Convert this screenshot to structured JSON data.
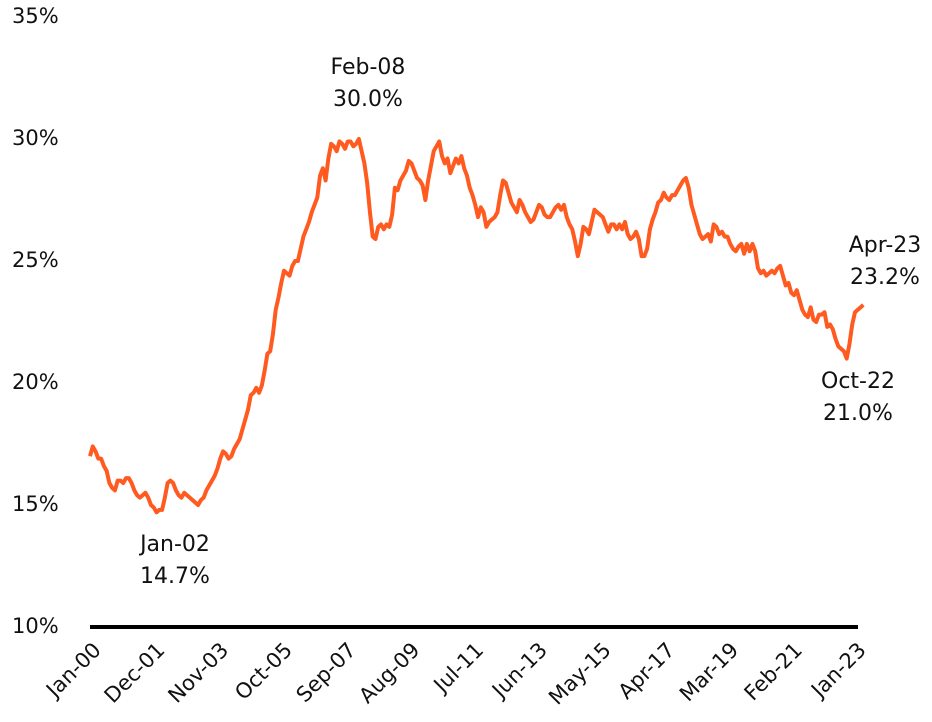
{
  "chart_data": {
    "type": "line",
    "categories": [
      "Jan-00",
      null,
      null,
      null,
      null,
      null,
      null,
      null,
      null,
      null,
      null,
      null,
      null,
      null,
      null,
      null,
      null,
      null,
      null,
      null,
      null,
      null,
      null,
      "Dec-01",
      null,
      null,
      null,
      null,
      null,
      null,
      null,
      null,
      null,
      null,
      null,
      null,
      null,
      null,
      null,
      null,
      null,
      null,
      null,
      null,
      null,
      null,
      "Nov-03",
      null,
      null,
      null,
      null,
      null,
      null,
      null,
      null,
      null,
      null,
      null,
      null,
      null,
      null,
      null,
      null,
      null,
      null,
      null,
      null,
      null,
      null,
      "Oct-05",
      null,
      null,
      null,
      null,
      null,
      null,
      null,
      null,
      null,
      null,
      null,
      null,
      null,
      null,
      null,
      null,
      null,
      null,
      null,
      null,
      null,
      null,
      "Sep-07",
      null,
      null,
      null,
      null,
      null,
      null,
      null,
      null,
      null,
      null,
      null,
      null,
      null,
      null,
      null,
      null,
      null,
      null,
      null,
      null,
      null,
      null,
      "Aug-09",
      null,
      null,
      null,
      null,
      null,
      null,
      null,
      null,
      null,
      null,
      null,
      null,
      null,
      null,
      null,
      null,
      null,
      null,
      null,
      null,
      null,
      null,
      "Jul-11",
      null,
      null,
      null,
      null,
      null,
      null,
      null,
      null,
      null,
      null,
      null,
      null,
      null,
      null,
      null,
      null,
      null,
      null,
      null,
      null,
      null,
      null,
      "Jun-13",
      null,
      null,
      null,
      null,
      null,
      null,
      null,
      null,
      null,
      null,
      null,
      null,
      null,
      null,
      null,
      null,
      null,
      null,
      null,
      null,
      null,
      null,
      "May-15",
      null,
      null,
      null,
      null,
      null,
      null,
      null,
      null,
      null,
      null,
      null,
      null,
      null,
      null,
      null,
      null,
      null,
      null,
      null,
      null,
      null,
      null,
      "Apr-17",
      null,
      null,
      null,
      null,
      null,
      null,
      null,
      null,
      null,
      null,
      null,
      null,
      null,
      null,
      null,
      null,
      null,
      null,
      null,
      null,
      null,
      null,
      "Mar-19",
      null,
      null,
      null,
      null,
      null,
      null,
      null,
      null,
      null,
      null,
      null,
      null,
      null,
      null,
      null,
      null,
      null,
      null,
      null,
      null,
      null,
      null,
      "Feb-21",
      null,
      null,
      null,
      null,
      null,
      null,
      null,
      null,
      null,
      null,
      null,
      null,
      null,
      null,
      null,
      null,
      null,
      null,
      null,
      null,
      null,
      null,
      "Jan-23",
      null,
      null,
      null
    ],
    "series": [
      {
        "color": "#ff5a1f",
        "values": [
          17.0,
          17.4,
          17.2,
          16.9,
          16.9,
          16.6,
          16.4,
          15.9,
          15.7,
          15.6,
          16.0,
          16.0,
          15.9,
          16.1,
          16.1,
          15.9,
          15.6,
          15.4,
          15.3,
          15.4,
          15.5,
          15.3,
          15.0,
          14.9,
          14.7,
          14.8,
          14.8,
          15.3,
          15.9,
          16.0,
          15.9,
          15.6,
          15.4,
          15.3,
          15.5,
          15.4,
          15.3,
          15.2,
          15.1,
          15.0,
          15.2,
          15.3,
          15.6,
          15.8,
          16.0,
          16.2,
          16.5,
          16.9,
          17.2,
          17.1,
          16.9,
          17.0,
          17.3,
          17.5,
          17.7,
          18.1,
          18.5,
          18.9,
          19.5,
          19.6,
          19.8,
          19.6,
          19.9,
          20.5,
          21.2,
          21.3,
          22.0,
          23.0,
          23.5,
          24.1,
          24.6,
          24.5,
          24.4,
          24.8,
          25.0,
          25.0,
          25.5,
          26.0,
          26.3,
          26.6,
          27.0,
          27.3,
          27.6,
          28.5,
          28.8,
          28.3,
          29.2,
          29.8,
          29.7,
          29.5,
          29.9,
          29.8,
          29.6,
          29.9,
          29.9,
          29.7,
          29.8,
          30.0,
          29.5,
          29.0,
          28.2,
          27.0,
          26.0,
          25.9,
          26.4,
          26.5,
          26.3,
          26.5,
          26.4,
          26.9,
          28.0,
          27.9,
          28.3,
          28.5,
          28.7,
          29.1,
          29.0,
          28.7,
          28.4,
          28.3,
          28.1,
          27.5,
          28.3,
          28.9,
          29.5,
          29.7,
          29.9,
          29.3,
          29.0,
          29.2,
          28.6,
          28.9,
          29.2,
          29.0,
          29.3,
          28.8,
          28.5,
          28.0,
          27.7,
          27.3,
          26.8,
          27.2,
          27.0,
          26.4,
          26.6,
          26.7,
          26.8,
          27.0,
          27.7,
          28.3,
          28.2,
          27.8,
          27.4,
          27.2,
          27.0,
          27.5,
          27.3,
          27.0,
          26.8,
          26.6,
          26.7,
          27.0,
          27.3,
          27.2,
          26.9,
          26.8,
          26.8,
          27.0,
          27.2,
          27.3,
          27.1,
          27.3,
          26.8,
          26.5,
          26.3,
          25.8,
          25.2,
          25.7,
          26.4,
          26.3,
          26.1,
          26.6,
          27.1,
          27.0,
          26.9,
          26.8,
          26.5,
          26.2,
          26.5,
          26.5,
          26.3,
          26.5,
          26.3,
          26.6,
          26.1,
          25.9,
          26.0,
          26.2,
          25.9,
          25.2,
          25.2,
          25.5,
          26.3,
          26.7,
          27.0,
          27.4,
          27.5,
          27.8,
          27.6,
          27.5,
          27.7,
          27.7,
          27.9,
          28.1,
          28.3,
          28.4,
          28.0,
          27.3,
          26.9,
          26.5,
          26.1,
          25.9,
          26.0,
          26.1,
          25.8,
          26.5,
          26.4,
          26.1,
          26.2,
          26.0,
          26.0,
          25.7,
          25.5,
          25.4,
          25.6,
          25.7,
          25.3,
          25.7,
          25.4,
          25.7,
          25.4,
          24.7,
          24.5,
          24.6,
          24.4,
          24.5,
          24.6,
          24.5,
          24.7,
          24.8,
          24.4,
          24.0,
          24.1,
          23.7,
          23.6,
          23.8,
          23.4,
          23.0,
          22.8,
          22.7,
          23.1,
          22.6,
          22.5,
          22.8,
          22.8,
          22.9,
          22.3,
          22.4,
          22.2,
          21.8,
          21.5,
          21.4,
          21.3,
          21.0,
          21.6,
          22.4,
          22.9,
          23.0,
          23.1,
          23.2
        ]
      }
    ],
    "ylim": [
      10,
      35
    ],
    "yticks": [
      {
        "value": 10,
        "label": "10%"
      },
      {
        "value": 15,
        "label": "15%"
      },
      {
        "value": 20,
        "label": "20%"
      },
      {
        "value": 25,
        "label": "25%"
      },
      {
        "value": 30,
        "label": "30%"
      },
      {
        "value": 35,
        "label": "35%"
      }
    ],
    "annotations": [
      [
        "Feb-08",
        "30.0%"
      ],
      [
        "Jan-02",
        "14.7%"
      ],
      [
        "Apr-23",
        "23.2%"
      ],
      [
        "Oct-22",
        "21.0%"
      ]
    ],
    "grid": false
  }
}
